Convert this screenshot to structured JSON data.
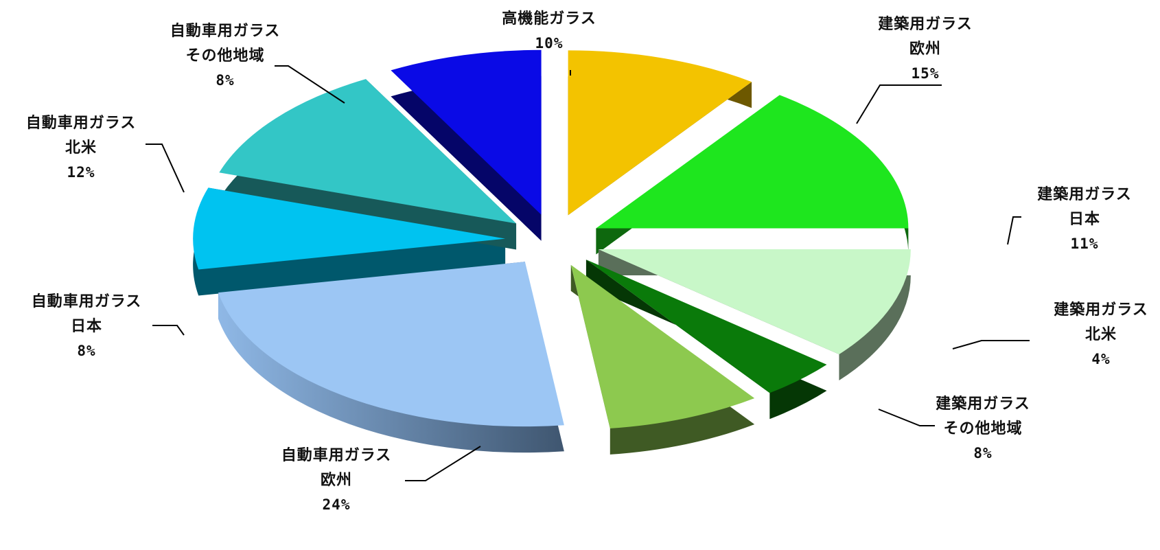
{
  "chart_data": {
    "type": "pie",
    "title": "",
    "start_angle_deg": -90,
    "direction": "clockwise",
    "slices": [
      {
        "label": "高機能ガラス",
        "value": 10,
        "pct_label": "10%",
        "color": "#F3C300"
      },
      {
        "label": "建築用ガラス 欧州",
        "value": 15,
        "pct_label": "15%",
        "color": "#1EE61E"
      },
      {
        "label": "建築用ガラス 日本",
        "value": 11,
        "pct_label": "11%",
        "color": "#C8F7C8"
      },
      {
        "label": "建築用ガラス 北米",
        "value": 4,
        "pct_label": "4%",
        "color": "#0A7A0A"
      },
      {
        "label": "建築用ガラス その他地域",
        "value": 8,
        "pct_label": "8%",
        "color": "#8DC94F"
      },
      {
        "label": "自動車用ガラス 欧州",
        "value": 24,
        "pct_label": "24%",
        "color": "#9CC6F4"
      },
      {
        "label": "自動車用ガラス 日本",
        "value": 8,
        "pct_label": "8%",
        "color": "#00C3F0"
      },
      {
        "label": "自動車用ガラス 北米",
        "value": 12,
        "pct_label": "12%",
        "color": "#33C6C6"
      },
      {
        "label": "自動車用ガラス その他地域",
        "value": 8,
        "pct_label": "8%",
        "color": "#0A0AE6"
      }
    ],
    "label_lines": [
      [
        "高機能ガラス",
        "10%"
      ],
      [
        "建築用ガラス",
        "欧州",
        "15%"
      ],
      [
        "建築用ガラス",
        "日本",
        "11%"
      ],
      [
        "建築用ガラス",
        "北米",
        "4%"
      ],
      [
        "建築用ガラス",
        "その他地域",
        "8%"
      ],
      [
        "自動車用ガラス",
        "欧州",
        "24%"
      ],
      [
        "自動車用ガラス",
        "日本",
        "8%"
      ],
      [
        "自動車用ガラス",
        "北米",
        "12%"
      ],
      [
        "自動車用ガラス",
        "その他地域",
        "8%"
      ]
    ],
    "legend": "none",
    "style": "3d-exploded"
  }
}
